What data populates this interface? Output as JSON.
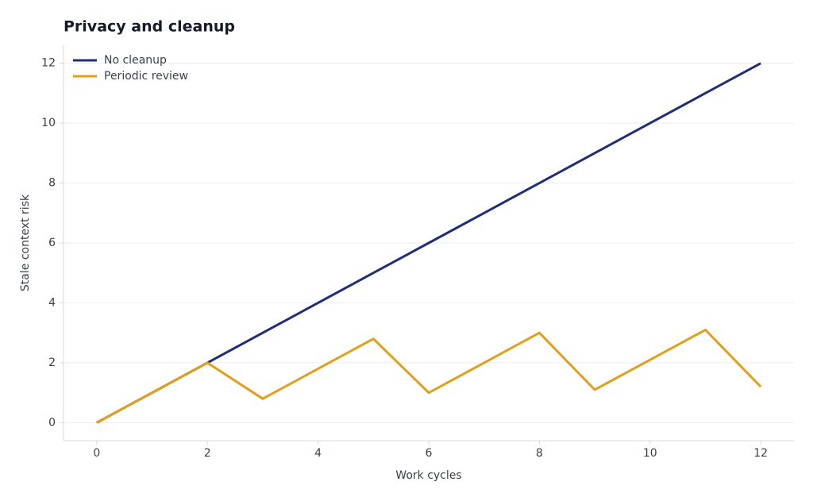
{
  "chart_data": {
    "type": "line",
    "title": "Privacy and cleanup",
    "x_label": "Work cycles",
    "y_label": "Stale context risk",
    "x": [
      0,
      1,
      2,
      3,
      4,
      5,
      6,
      7,
      8,
      9,
      10,
      11,
      12
    ],
    "series": [
      {
        "name": "No cleanup",
        "color": "#1f2d7a",
        "values": [
          0,
          1,
          2,
          3,
          4,
          5,
          6,
          7,
          8,
          9,
          10,
          11,
          12
        ]
      },
      {
        "name": "Periodic review",
        "color": "#e39e1a",
        "values": [
          0,
          1,
          2,
          0.8,
          1.8,
          2.8,
          1.0,
          2.0,
          3.0,
          1.1,
          2.1,
          3.1,
          1.2
        ]
      }
    ],
    "xlim": [
      -0.6,
      12.6
    ],
    "xticks": [
      0,
      2,
      4,
      6,
      8,
      10,
      12
    ],
    "ylim": [
      -0.6,
      12.6
    ],
    "yticks": [
      0,
      2,
      4,
      6,
      8,
      10,
      12
    ],
    "grid": true,
    "legend": "upper left"
  }
}
